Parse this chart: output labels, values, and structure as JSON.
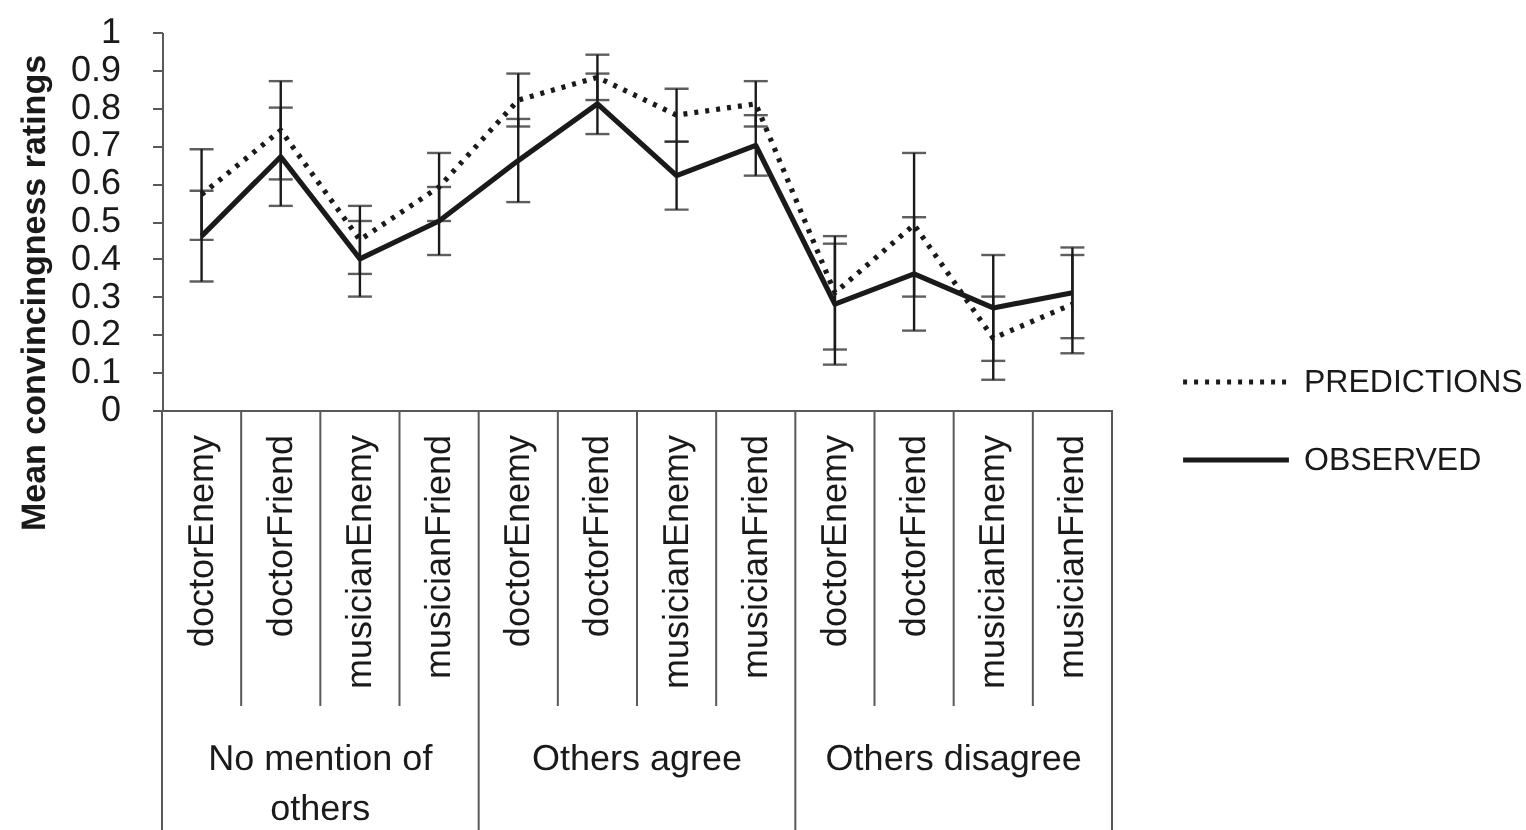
{
  "chart_data": {
    "type": "line",
    "ylabel": "Mean convincingness ratings",
    "categories": [
      "doctorEnemy",
      "doctorFriend",
      "musicianEnemy",
      "musicianFriend",
      "doctorEnemy",
      "doctorFriend",
      "musicianEnemy",
      "musicianFriend",
      "doctorEnemy",
      "doctorFriend",
      "musicianEnemy",
      "musicianFriend"
    ],
    "annotations": [
      "No mention of others",
      "Others agree",
      "Others disagree"
    ],
    "series": [
      {
        "name": "PREDICTIONS",
        "color": "#1a1a1a",
        "line_style": "dotted",
        "values": [
          0.57,
          0.74,
          0.45,
          0.59,
          0.82,
          0.88,
          0.78,
          0.81,
          0.31,
          0.49,
          0.19,
          0.28
        ],
        "errors": [
          0.12,
          0.13,
          0.09,
          0.09,
          0.07,
          0.06,
          0.07,
          0.06,
          0.15,
          0.19,
          0.11,
          0.13
        ]
      },
      {
        "name": "OBSERVED",
        "color": "#1a1a1a",
        "line_style": "solid",
        "values": [
          0.46,
          0.67,
          0.4,
          0.5,
          0.66,
          0.81,
          0.62,
          0.7,
          0.28,
          0.36,
          0.27,
          0.31
        ],
        "errors": [
          0.12,
          0.13,
          0.1,
          0.09,
          0.11,
          0.08,
          0.09,
          0.08,
          0.16,
          0.15,
          0.14,
          0.12
        ]
      }
    ],
    "ylim": [
      0,
      1
    ],
    "yticks": [
      0,
      0.1,
      0.2,
      0.3,
      0.4,
      0.5,
      0.6,
      0.7,
      0.8,
      0.9,
      1
    ],
    "grid": false,
    "legend": "right"
  }
}
